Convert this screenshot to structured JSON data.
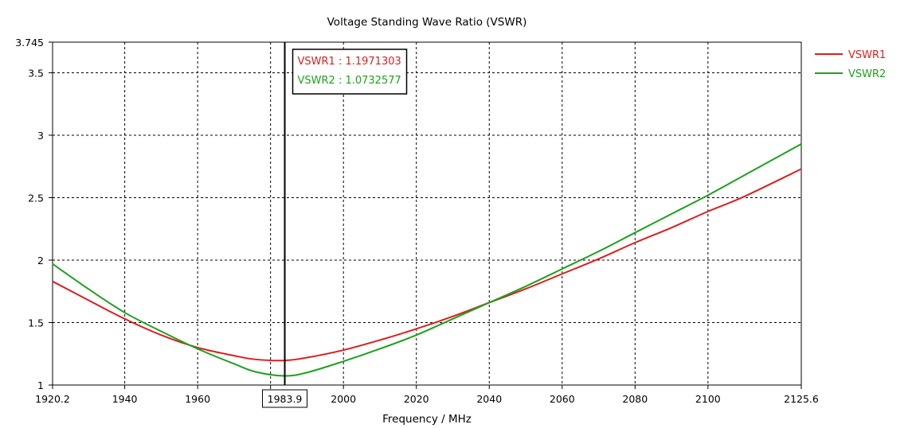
{
  "chart_data": {
    "type": "line",
    "title": "Voltage Standing Wave Ratio (VSWR)",
    "xlabel": "Frequency / MHz",
    "ylabel": "",
    "xlim": [
      1920.2,
      2125.6
    ],
    "ylim": [
      1,
      3.745
    ],
    "x_ticks": [
      1920.2,
      1940,
      1960,
      1980,
      2000,
      2020,
      2040,
      2060,
      2080,
      2100,
      2125.6
    ],
    "x_tick_labels": [
      "1920.2",
      "1940",
      "1960",
      "",
      "2000",
      "2020",
      "2040",
      "2060",
      "2080",
      "2100",
      "2125.6"
    ],
    "y_ticks": [
      1,
      1.5,
      2,
      2.5,
      3,
      3.5,
      3.745
    ],
    "y_tick_labels": [
      "1",
      "1.5",
      "2",
      "2.5",
      "3",
      "3.5",
      "3.745"
    ],
    "grid": true,
    "legend_position": "right",
    "series": [
      {
        "name": "VSWR1",
        "color": "#dc1e1e",
        "x": [
          1920.2,
          1930,
          1940,
          1950,
          1960,
          1970,
          1976,
          1983.9,
          1990,
          2000,
          2010,
          2020,
          2030,
          2040,
          2050,
          2060,
          2070,
          2080,
          2090,
          2100,
          2110,
          2125.6
        ],
        "y": [
          1.83,
          1.68,
          1.53,
          1.4,
          1.3,
          1.235,
          1.205,
          1.197,
          1.22,
          1.28,
          1.36,
          1.45,
          1.55,
          1.66,
          1.77,
          1.89,
          2.01,
          2.14,
          2.26,
          2.39,
          2.51,
          2.73
        ]
      },
      {
        "name": "VSWR2",
        "color": "#1ea01e",
        "x": [
          1920.2,
          1930,
          1940,
          1950,
          1960,
          1970,
          1976,
          1983.9,
          1990,
          2000,
          2010,
          2020,
          2030,
          2040,
          2050,
          2060,
          2070,
          2080,
          2090,
          2100,
          2110,
          2125.6
        ],
        "y": [
          1.97,
          1.77,
          1.58,
          1.43,
          1.29,
          1.17,
          1.105,
          1.073,
          1.1,
          1.19,
          1.29,
          1.4,
          1.53,
          1.66,
          1.79,
          1.93,
          2.07,
          2.22,
          2.37,
          2.52,
          2.68,
          2.93
        ]
      }
    ],
    "marker": {
      "x": 1983.9,
      "x_label": "1983.9",
      "readouts": [
        {
          "label": "VSWR1 : 1.1971303",
          "color": "#dc1e1e"
        },
        {
          "label": "VSWR2 : 1.0732577",
          "color": "#1ea01e"
        }
      ]
    }
  }
}
